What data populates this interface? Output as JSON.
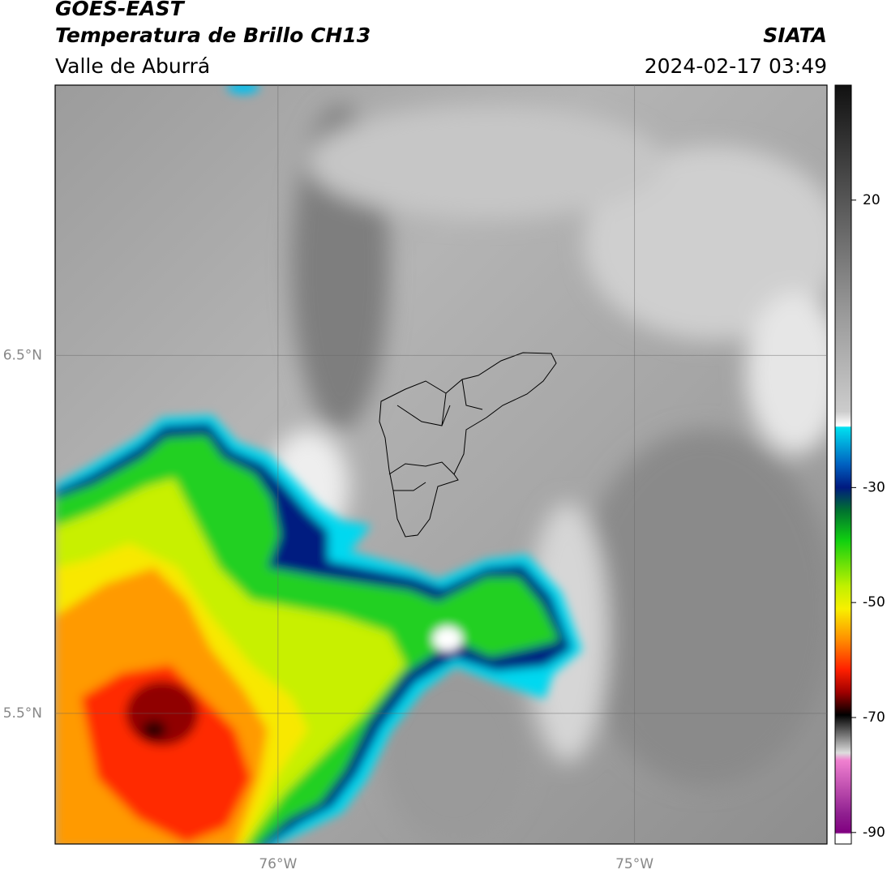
{
  "header": {
    "title": "GOES-EAST",
    "subtitle": "Temperatura de Brillo CH13",
    "region": "Valle de Aburrá",
    "source": "SIATA",
    "datetime": "2024-02-17 03:49"
  },
  "map": {
    "lon_range": [
      -76.625,
      -74.46
    ],
    "lat_range": [
      5.135,
      7.255
    ],
    "lon_ticks": [
      {
        "value": -76,
        "label": "76°W"
      },
      {
        "value": -75,
        "label": "75°W"
      }
    ],
    "lat_ticks": [
      {
        "value": 6.5,
        "label": "6.5°N"
      },
      {
        "value": 5.5,
        "label": "5.5°N"
      }
    ]
  },
  "colorbar": {
    "range": [
      -92,
      40
    ],
    "ticks": [
      20,
      -30,
      -50,
      -70,
      -90
    ]
  }
}
